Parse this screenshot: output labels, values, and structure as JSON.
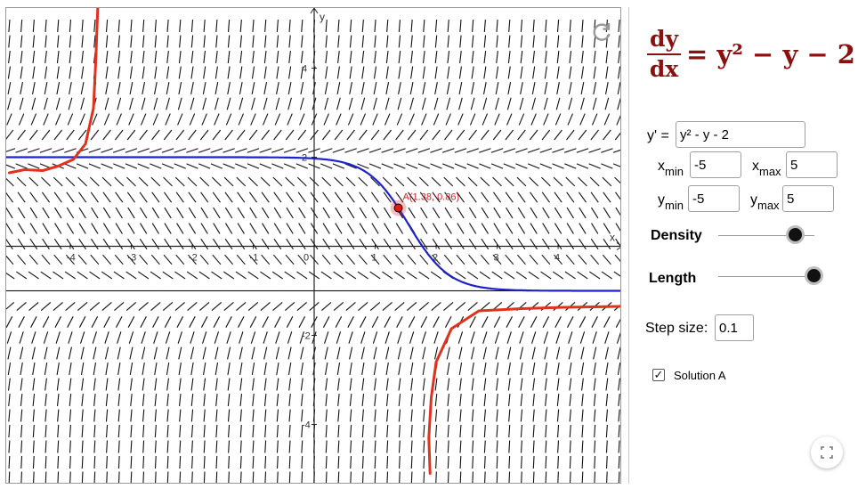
{
  "graph": {
    "xrange": [
      -5.05,
      5.05
    ],
    "yrange": [
      -5.35,
      5.35
    ],
    "tick_labels_x": [
      "-4",
      "-3",
      "-2",
      "-1",
      "0",
      "1",
      "2",
      "3",
      "4"
    ],
    "tick_labels_y": [
      "4",
      "2",
      "-2",
      "-4"
    ],
    "axis_x_label": "x",
    "axis_y_label": "y",
    "point_label": "A(1.38, 0.86)",
    "point": {
      "x": 1.38,
      "y": 0.86
    },
    "colors": {
      "solution": "#1e22cc",
      "ink": "#e0321c",
      "point": "#e01919",
      "slope": "#111111",
      "point_label": "#e01919"
    }
  },
  "panel": {
    "equation_num": "dy",
    "equation_den": "dx",
    "equation_rhs": "= y² − y − 2",
    "yprime_label": "y' =",
    "yprime_value": "y² - y - 2",
    "xmin_label": "x",
    "xmin_sub": "min",
    "xmin_value": "-5",
    "xmax_label": "x",
    "xmax_sub": "max",
    "xmax_value": "5",
    "ymin_label": "y",
    "ymin_sub": "min",
    "ymin_value": "-5",
    "ymax_label": "y",
    "ymax_sub": "max",
    "ymax_value": "5",
    "density_label": "Density",
    "length_label": "Length",
    "step_label": "Step size:",
    "step_value": "0.1",
    "solution_label": "Solution A",
    "solution_checked": "✓"
  }
}
